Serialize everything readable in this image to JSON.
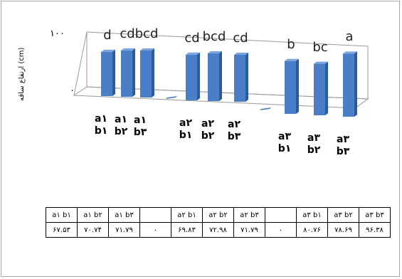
{
  "chart_data": {
    "type": "bar",
    "ylabel": "ارتفاع ساقه (cm)",
    "y_ticks": [
      "۱۰۰",
      "۰"
    ],
    "categories": [
      {
        "line1": "a۱",
        "line2": "b۱"
      },
      {
        "line1": "a۱",
        "line2": "b۲"
      },
      {
        "line1": "a۱",
        "line2": "b۳"
      },
      {
        "line1": "",
        "line2": ""
      },
      {
        "line1": "a۲",
        "line2": "b۱"
      },
      {
        "line1": "a۲",
        "line2": "b۲"
      },
      {
        "line1": "a۲",
        "line2": "b۳"
      },
      {
        "line1": "",
        "line2": ""
      },
      {
        "line1": "a۳",
        "line2": "b۱"
      },
      {
        "line1": "a۳",
        "line2": "b۲"
      },
      {
        "line1": "a۳",
        "line2": "b۳"
      }
    ],
    "values": [
      67.53,
      70.74,
      71.79,
      0,
      69.83,
      72.98,
      71.79,
      0,
      80.76,
      78.69,
      96.38
    ],
    "letters": [
      "d",
      "cd",
      "bcd",
      "",
      "cd",
      "bcd",
      "cd",
      "",
      "b",
      "bc",
      "a"
    ],
    "ylim": [
      0,
      100
    ],
    "bar_color": "#4a7fc8",
    "bar_side_color": "#2d5a9c",
    "table": {
      "header": [
        "a۱ b۱",
        "a۱ b۲",
        "a۱ b۳",
        "",
        "a۲ b۱",
        "a۲ b۲",
        "a۲ b۳",
        "",
        "a۳ b۱",
        "a۳ b۲",
        "a۳ b۳"
      ],
      "values": [
        "۶۷.۵۳",
        "۷۰.۷۴",
        "۷۱.۷۹",
        "۰",
        "۶۹.۸۳",
        "۷۲.۹۸",
        "۷۱.۷۹",
        "۰",
        "۸۰.۷۶",
        "۷۸.۶۹",
        "۹۶.۳۸"
      ]
    }
  }
}
